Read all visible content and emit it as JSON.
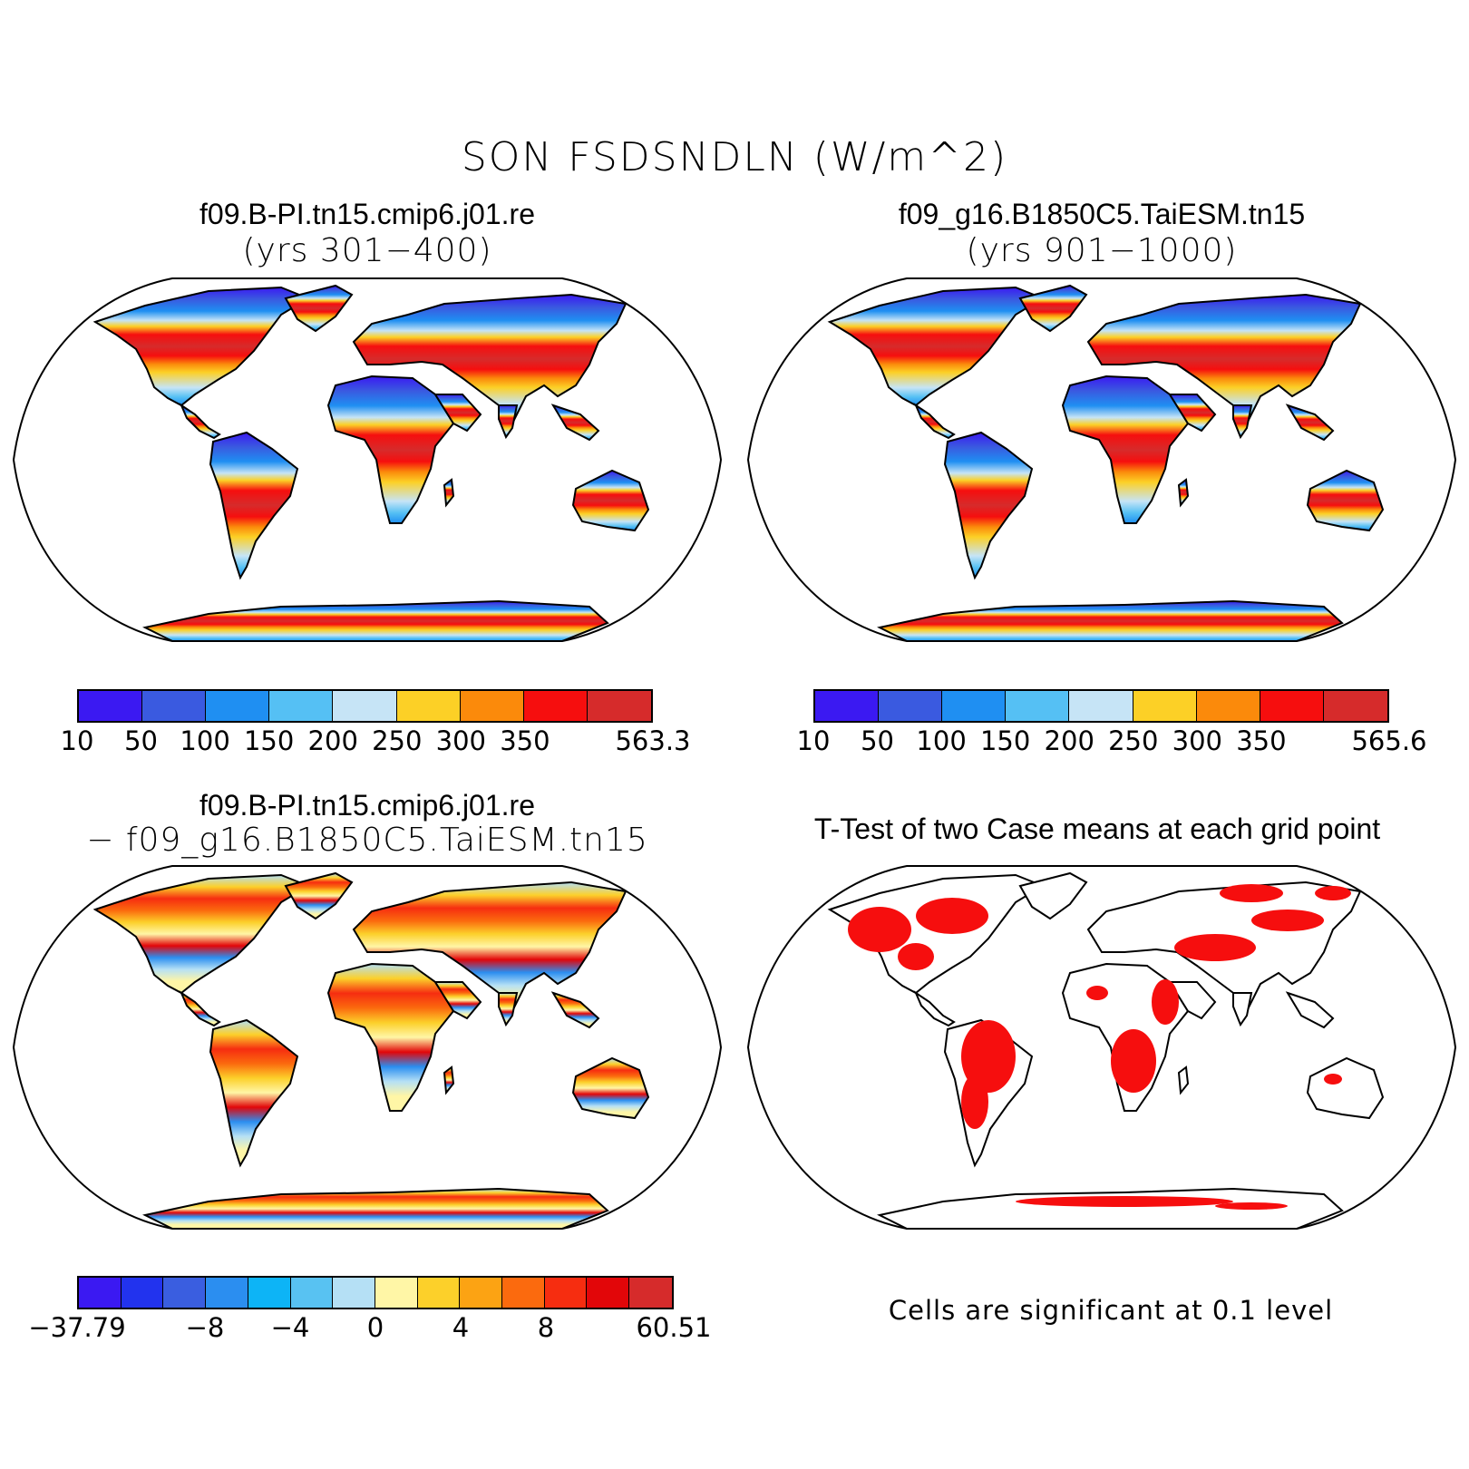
{
  "title": "SON FSDSNDLN (W/m^2)",
  "panels": {
    "top_left": {
      "title": "f09.B-PI.tn15.cmip6.j01.re",
      "subtitle": "(yrs 301−400)",
      "colorbar": {
        "colors": [
          "#3b19f2",
          "#3a5ae0",
          "#1f8ff2",
          "#55c0f4",
          "#c6e4f6",
          "#fcd026",
          "#fb8a0b",
          "#f60e0e",
          "#d62b2b"
        ],
        "labels": [
          "10",
          "50",
          "100",
          "150",
          "200",
          "250",
          "300",
          "350",
          "563.3"
        ]
      }
    },
    "top_right": {
      "title": "f09_g16.B1850C5.TaiESM.tn15",
      "subtitle": "(yrs 901−1000)",
      "colorbar": {
        "colors": [
          "#3b19f2",
          "#3a5ae0",
          "#1f8ff2",
          "#55c0f4",
          "#c6e4f6",
          "#fcd026",
          "#fb8a0b",
          "#f60e0e",
          "#d62b2b"
        ],
        "labels": [
          "10",
          "50",
          "100",
          "150",
          "200",
          "250",
          "300",
          "350",
          "565.6"
        ]
      }
    },
    "bottom_left": {
      "title": "f09.B-PI.tn15.cmip6.j01.re",
      "subtitle": "− f09_g16.B1850C5.TaiESM.tn15",
      "colorbar": {
        "colors": [
          "#3b19f2",
          "#2233ee",
          "#3a5ee0",
          "#2b8ef0",
          "#0db4f6",
          "#58c2f2",
          "#b5e0f5",
          "#fff6a6",
          "#fcd02a",
          "#fca313",
          "#fb6a0e",
          "#f62d10",
          "#e20609",
          "#d62b2b"
        ],
        "labels": [
          "−37.79",
          "−8",
          "−4",
          "0",
          "4",
          "8",
          "60.51"
        ]
      }
    },
    "bottom_right": {
      "title": "T-Test of two Case means at each grid point",
      "note": "Cells are significant at 0.1 level",
      "sig_color": "#f60e0e"
    }
  }
}
